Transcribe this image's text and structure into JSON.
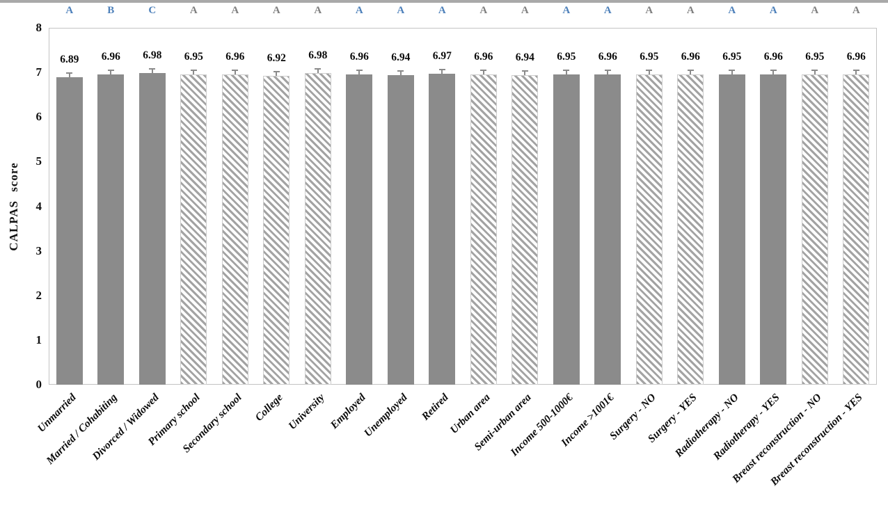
{
  "chart_data": {
    "type": "bar",
    "title": "",
    "xlabel": "",
    "ylabel": "CALPAS score",
    "ylim": [
      0,
      8
    ],
    "yticks": [
      0,
      1,
      2,
      3,
      4,
      5,
      6,
      7,
      8
    ],
    "grid": false,
    "legend": null,
    "error_bar_estimate": 0.1,
    "categories": [
      "Unmarried",
      "Married / Cohabiting",
      "Divorced / Widowed",
      "Primary school",
      "Secondary school",
      "College",
      "University",
      "Employed",
      "Unemployed",
      "Retired",
      "Urban area",
      "Semi-urban area",
      "Income 500-1000€",
      "Income >1001€",
      "Surgery - NO",
      "Surgery - YES",
      "Radiotherapy - NO",
      "Radiotherapy - YES",
      "Breast reconstruction - NO",
      "Breast reconstruction - YES"
    ],
    "values": [
      6.89,
      6.96,
      6.98,
      6.95,
      6.96,
      6.92,
      6.98,
      6.96,
      6.94,
      6.97,
      6.96,
      6.94,
      6.95,
      6.96,
      6.95,
      6.96,
      6.95,
      6.96,
      6.95,
      6.96
    ],
    "bars": [
      {
        "category": "Unmarried",
        "value": 6.89,
        "letter": "A",
        "letter_color": "blue",
        "fill": "solid"
      },
      {
        "category": "Married / Cohabiting",
        "value": 6.96,
        "letter": "B",
        "letter_color": "blue",
        "fill": "solid"
      },
      {
        "category": "Divorced / Widowed",
        "value": 6.98,
        "letter": "C",
        "letter_color": "blue",
        "fill": "solid"
      },
      {
        "category": "Primary school",
        "value": 6.95,
        "letter": "A",
        "letter_color": "gray",
        "fill": "hatched"
      },
      {
        "category": "Secondary school",
        "value": 6.96,
        "letter": "A",
        "letter_color": "gray",
        "fill": "hatched"
      },
      {
        "category": "College",
        "value": 6.92,
        "letter": "A",
        "letter_color": "gray",
        "fill": "hatched"
      },
      {
        "category": "University",
        "value": 6.98,
        "letter": "A",
        "letter_color": "gray",
        "fill": "hatched"
      },
      {
        "category": "Employed",
        "value": 6.96,
        "letter": "A",
        "letter_color": "blue",
        "fill": "solid"
      },
      {
        "category": "Unemployed",
        "value": 6.94,
        "letter": "A",
        "letter_color": "blue",
        "fill": "solid"
      },
      {
        "category": "Retired",
        "value": 6.97,
        "letter": "A",
        "letter_color": "blue",
        "fill": "solid"
      },
      {
        "category": "Urban area",
        "value": 6.96,
        "letter": "A",
        "letter_color": "gray",
        "fill": "hatched"
      },
      {
        "category": "Semi-urban area",
        "value": 6.94,
        "letter": "A",
        "letter_color": "gray",
        "fill": "hatched"
      },
      {
        "category": "Income 500-1000€",
        "value": 6.95,
        "letter": "A",
        "letter_color": "blue",
        "fill": "solid"
      },
      {
        "category": "Income >1001€",
        "value": 6.96,
        "letter": "A",
        "letter_color": "blue",
        "fill": "solid"
      },
      {
        "category": "Surgery - NO",
        "value": 6.95,
        "letter": "A",
        "letter_color": "gray",
        "fill": "hatched"
      },
      {
        "category": "Surgery - YES",
        "value": 6.96,
        "letter": "A",
        "letter_color": "gray",
        "fill": "hatched"
      },
      {
        "category": "Radiotherapy - NO",
        "value": 6.95,
        "letter": "A",
        "letter_color": "blue",
        "fill": "solid"
      },
      {
        "category": "Radiotherapy - YES",
        "value": 6.96,
        "letter": "A",
        "letter_color": "blue",
        "fill": "solid"
      },
      {
        "category": "Breast reconstruction - NO",
        "value": 6.95,
        "letter": "A",
        "letter_color": "gray",
        "fill": "hatched"
      },
      {
        "category": "Breast reconstruction - YES",
        "value": 6.96,
        "letter": "A",
        "letter_color": "gray",
        "fill": "hatched"
      }
    ],
    "colors": {
      "solid_bar": "#8b8b8b",
      "hatch_stripe": "#a3a3a3",
      "letter_blue": "#4d80ba",
      "letter_gray": "#7f7f7f",
      "error_bar": "#8a8a8a",
      "plot_border": "#c3c3c3",
      "text": "#111111"
    }
  }
}
